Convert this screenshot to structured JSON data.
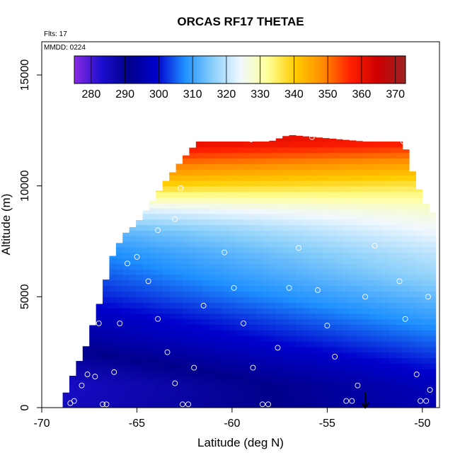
{
  "chart_data": {
    "type": "heatmap",
    "title": "ORCAS RF17 THETAE",
    "annotations": {
      "flights": "Flts: 17",
      "date": "MMDD: 0224"
    },
    "xlabel": "Latitude (deg N)",
    "ylabel": "Altitude (m)",
    "xlim": [
      -70,
      -49.1
    ],
    "ylim": [
      0,
      16500
    ],
    "xticks": [
      -70,
      -65,
      -60,
      -55,
      -50
    ],
    "xtick_labels": [
      "-70",
      "-65",
      "-60",
      "-55",
      "-50"
    ],
    "yticks": [
      0,
      5000,
      10000,
      15000
    ],
    "ytick_labels": [
      "0",
      "5000",
      "10000",
      "15000"
    ],
    "colorbar": {
      "location": "top-inside",
      "range": [
        275,
        373
      ],
      "ticks": [
        280,
        290,
        300,
        310,
        320,
        330,
        340,
        350,
        360,
        370
      ],
      "tick_labels": [
        "280",
        "290",
        "300",
        "310",
        "320",
        "330",
        "340",
        "350",
        "360",
        "370"
      ],
      "color_stops": [
        "#8a2be2",
        "#1a0dcc",
        "#00008b",
        "#0000cd",
        "#1e90ff",
        "#87cefa",
        "#f0f8ff",
        "#ffff99",
        "#ffcc00",
        "#ff8c00",
        "#ff2000",
        "#cc0000",
        "#9b2222"
      ]
    },
    "grid": false,
    "field": {
      "lat_range": [
        -68.9,
        -49.6
      ],
      "alt_range": [
        0,
        12300
      ],
      "top_altitude_profile": [
        {
          "lat": -68.9,
          "alt": 300
        },
        {
          "lat": -68.3,
          "alt": 1600
        },
        {
          "lat": -67.7,
          "alt": 2700
        },
        {
          "lat": -67.0,
          "alt": 4600
        },
        {
          "lat": -66.3,
          "alt": 6800
        },
        {
          "lat": -65.7,
          "alt": 7800
        },
        {
          "lat": -65.0,
          "alt": 8300
        },
        {
          "lat": -64.2,
          "alt": 9300
        },
        {
          "lat": -63.5,
          "alt": 10200
        },
        {
          "lat": -62.5,
          "alt": 11300
        },
        {
          "lat": -61.8,
          "alt": 12000
        },
        {
          "lat": -58.0,
          "alt": 12000
        },
        {
          "lat": -57.0,
          "alt": 12300
        },
        {
          "lat": -53.0,
          "alt": 12000
        },
        {
          "lat": -51.0,
          "alt": 12000
        },
        {
          "lat": -50.4,
          "alt": 10300
        },
        {
          "lat": -50.0,
          "alt": 9500
        },
        {
          "lat": -49.6,
          "alt": 8800
        }
      ],
      "levels": [
        {
          "alt": 0,
          "lat_south": 285,
          "lat_north": 296
        },
        {
          "alt": 1000,
          "lat_south": 284,
          "lat_north": 297
        },
        {
          "alt": 2000,
          "lat_south": 288,
          "lat_north": 301
        },
        {
          "alt": 3000,
          "lat_south": 293,
          "lat_north": 305
        },
        {
          "alt": 4000,
          "lat_south": 296,
          "lat_north": 309
        },
        {
          "alt": 5000,
          "lat_south": 300,
          "lat_north": 313
        },
        {
          "alt": 6000,
          "lat_south": 303,
          "lat_north": 317
        },
        {
          "alt": 7000,
          "lat_south": 306,
          "lat_north": 320
        },
        {
          "alt": 8000,
          "lat_south": 311,
          "lat_north": 324
        },
        {
          "alt": 9000,
          "lat_south": 322,
          "lat_north": 328
        },
        {
          "alt": 10000,
          "lat_south": 340,
          "lat_north": 336
        },
        {
          "alt": 11000,
          "lat_south": 352,
          "lat_north": 346
        },
        {
          "alt": 12000,
          "lat_south": 363,
          "lat_north": 358
        }
      ]
    },
    "sample_points": [
      {
        "lat": -68.5,
        "alt": 200
      },
      {
        "lat": -68.3,
        "alt": 300
      },
      {
        "lat": -67.9,
        "alt": 1000
      },
      {
        "lat": -67.6,
        "alt": 1500
      },
      {
        "lat": -67.2,
        "alt": 1400
      },
      {
        "lat": -67.0,
        "alt": 3800
      },
      {
        "lat": -66.8,
        "alt": 150
      },
      {
        "lat": -66.6,
        "alt": 150
      },
      {
        "lat": -66.2,
        "alt": 1600
      },
      {
        "lat": -65.9,
        "alt": 3800
      },
      {
        "lat": -65.5,
        "alt": 6500
      },
      {
        "lat": -65.0,
        "alt": 6800
      },
      {
        "lat": -64.4,
        "alt": 5700
      },
      {
        "lat": -63.9,
        "alt": 4000
      },
      {
        "lat": -63.9,
        "alt": 8000
      },
      {
        "lat": -63.4,
        "alt": 2500
      },
      {
        "lat": -63.0,
        "alt": 1100
      },
      {
        "lat": -63.0,
        "alt": 8500
      },
      {
        "lat": -62.7,
        "alt": 9900
      },
      {
        "lat": -62.6,
        "alt": 150
      },
      {
        "lat": -62.3,
        "alt": 150
      },
      {
        "lat": -62.2,
        "alt": 12000
      },
      {
        "lat": -62.0,
        "alt": 1800
      },
      {
        "lat": -61.5,
        "alt": 4600
      },
      {
        "lat": -60.4,
        "alt": 7000
      },
      {
        "lat": -59.9,
        "alt": 5400
      },
      {
        "lat": -59.4,
        "alt": 3800
      },
      {
        "lat": -58.9,
        "alt": 1800
      },
      {
        "lat": -58.4,
        "alt": 150
      },
      {
        "lat": -58.1,
        "alt": 150
      },
      {
        "lat": -57.6,
        "alt": 2700
      },
      {
        "lat": -57.0,
        "alt": 5400
      },
      {
        "lat": -56.5,
        "alt": 7200
      },
      {
        "lat": -55.5,
        "alt": 5300
      },
      {
        "lat": -55.0,
        "alt": 3700
      },
      {
        "lat": -54.6,
        "alt": 2300
      },
      {
        "lat": -54.0,
        "alt": 300
      },
      {
        "lat": -53.7,
        "alt": 300
      },
      {
        "lat": -53.4,
        "alt": 1000
      },
      {
        "lat": -53.0,
        "alt": 5000
      },
      {
        "lat": -52.5,
        "alt": 7300
      },
      {
        "lat": -51.2,
        "alt": 5700
      },
      {
        "lat": -50.9,
        "alt": 4000
      },
      {
        "lat": -50.3,
        "alt": 1500
      },
      {
        "lat": -50.1,
        "alt": 300
      },
      {
        "lat": -49.8,
        "alt": 300
      },
      {
        "lat": -49.7,
        "alt": 5000
      },
      {
        "lat": -49.6,
        "alt": 800
      },
      {
        "lat": -59.0,
        "alt": 12100
      },
      {
        "lat": -55.8,
        "alt": 12200
      },
      {
        "lat": -51.0,
        "alt": 12000
      }
    ],
    "marker": {
      "type": "arrow-down",
      "lat": -53.0,
      "alt_from": 700,
      "alt_to": 0
    }
  }
}
